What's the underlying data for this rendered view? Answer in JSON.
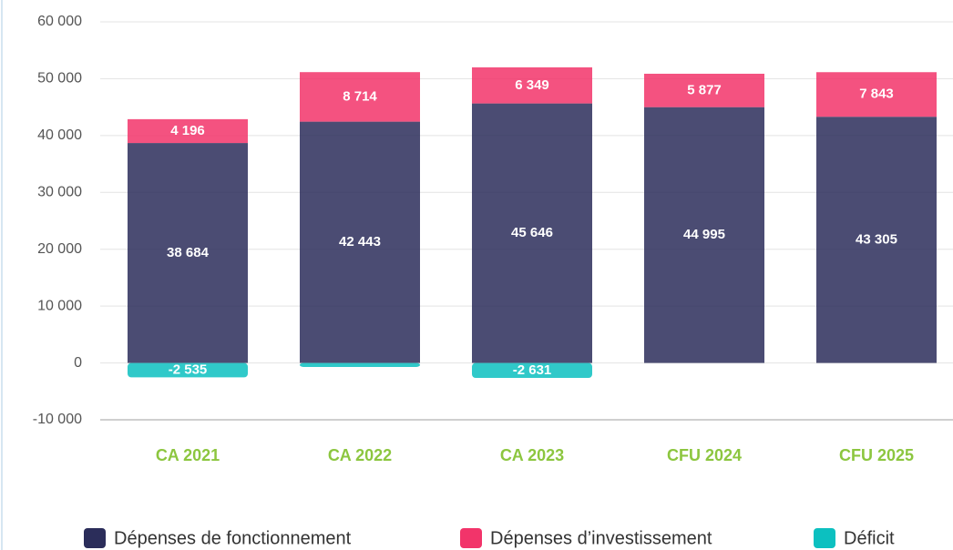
{
  "chart_data": {
    "type": "stacked-bar",
    "categories": [
      "CA 2021",
      "CA 2022",
      "CA 2023",
      "CFU 2024",
      "CFU 2025"
    ],
    "series": [
      {
        "name": "Dépenses de fonctionnement",
        "color": "#2b2d5a",
        "values": [
          38684,
          42443,
          45646,
          44995,
          43305
        ],
        "value_labels": [
          "38 684",
          "42 443",
          "45 646",
          "44 995",
          "43 305"
        ]
      },
      {
        "name": "Dépenses d’investissement",
        "color": "#f2346a",
        "values": [
          4196,
          8714,
          6349,
          5877,
          7843
        ],
        "value_labels": [
          "4 196",
          "8 714",
          "6 349",
          "5 877",
          "7 843"
        ]
      },
      {
        "name": "Déficit",
        "color": "#0cc0c0",
        "values": [
          -2535,
          -700,
          -2631,
          null,
          null
        ],
        "value_labels": [
          "-2 535",
          null,
          "-2 631",
          null,
          null
        ]
      }
    ],
    "ylim": [
      -10000,
      60000
    ],
    "yticks": [
      {
        "value": -10000,
        "label": "-10 000"
      },
      0,
      {
        "value": 10000,
        "label": "10 000"
      },
      {
        "value": 20000,
        "label": "20 000"
      },
      {
        "value": 30000,
        "label": "30 000"
      },
      {
        "value": 40000,
        "label": "40 000"
      },
      {
        "value": 50000,
        "label": "50 000"
      },
      {
        "value": 60000,
        "label": "60 000"
      }
    ],
    "grid": true
  }
}
